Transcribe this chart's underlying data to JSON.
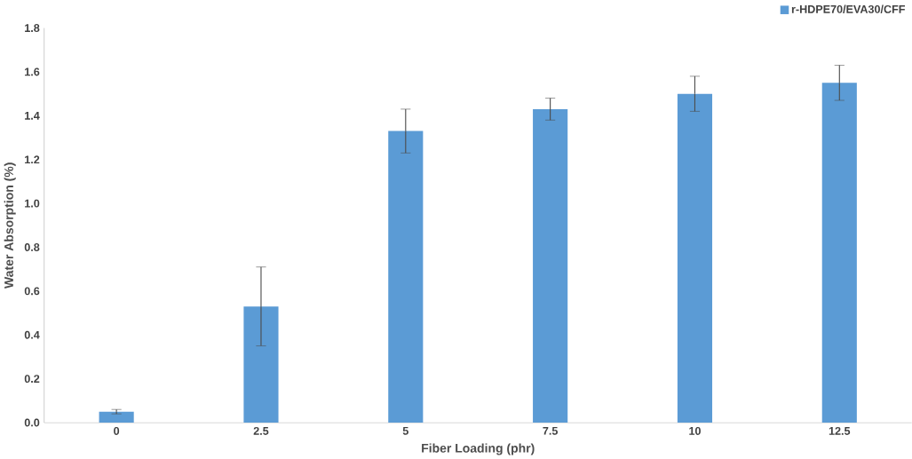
{
  "chart_data": {
    "type": "bar",
    "xlabel": "Fiber Loading (phr)",
    "ylabel": "Water Absorption (%)",
    "categories": [
      "0",
      "2.5",
      "5",
      "7.5",
      "10",
      "12.5"
    ],
    "series": [
      {
        "name": "r-HDPE70/EVA30/CFF",
        "color": "#5b9bd5",
        "values": [
          0.05,
          0.53,
          1.33,
          1.43,
          1.5,
          1.55
        ],
        "errors": [
          0.01,
          0.18,
          0.1,
          0.05,
          0.08,
          0.08
        ]
      }
    ],
    "ylim": [
      0,
      1.8
    ],
    "yticks": [
      {
        "value": 0,
        "label": "0.0"
      },
      0.2,
      0.4,
      0.6,
      0.8,
      {
        "value": 1,
        "label": "1.0"
      },
      1.2,
      1.4,
      1.6,
      1.8
    ],
    "legend": "top right",
    "grid": false
  }
}
